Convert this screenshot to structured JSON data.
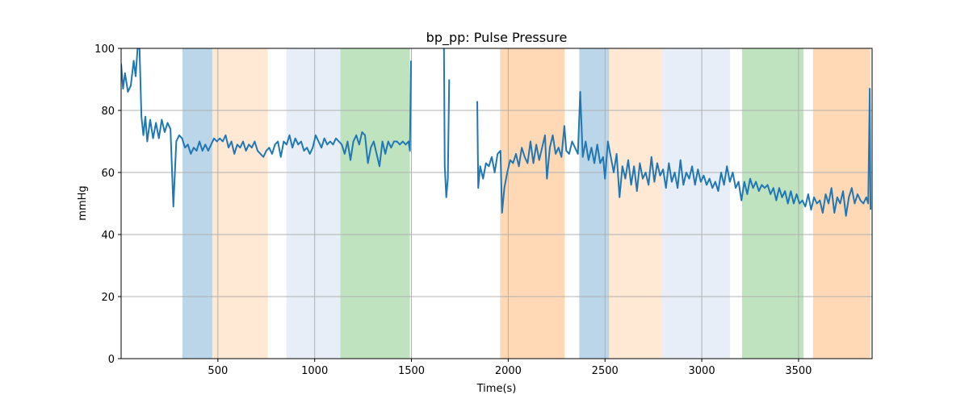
{
  "chart_data": {
    "type": "line",
    "title": "bp_pp: Pulse Pressure",
    "xlabel": "Time(s)",
    "ylabel": "mmHg",
    "xlim": [
      0,
      3880
    ],
    "ylim": [
      0,
      100
    ],
    "grid": true,
    "xticks": [
      500,
      1000,
      1500,
      2000,
      2500,
      3000,
      3500
    ],
    "yticks": [
      0,
      20,
      40,
      60,
      80,
      100
    ],
    "line_color": "#1f77b4",
    "spans": [
      {
        "start": 317,
        "end": 471,
        "color": "#1f77b4",
        "alpha": 0.3
      },
      {
        "start": 471,
        "end": 758,
        "color": "#ff7f0e",
        "alpha": 0.18
      },
      {
        "start": 854,
        "end": 1133,
        "color": "#aec7e8",
        "alpha": 0.3
      },
      {
        "start": 1133,
        "end": 1492,
        "color": "#2ca02c",
        "alpha": 0.3
      },
      {
        "start": 1958,
        "end": 2292,
        "color": "#ff7f0e",
        "alpha": 0.3
      },
      {
        "start": 2367,
        "end": 2521,
        "color": "#1f77b4",
        "alpha": 0.3
      },
      {
        "start": 2521,
        "end": 2796,
        "color": "#ff7f0e",
        "alpha": 0.18
      },
      {
        "start": 2796,
        "end": 3146,
        "color": "#aec7e8",
        "alpha": 0.3
      },
      {
        "start": 3208,
        "end": 3525,
        "color": "#2ca02c",
        "alpha": 0.3
      },
      {
        "start": 3575,
        "end": 3871,
        "color": "#ff7f0e",
        "alpha": 0.3
      }
    ],
    "segments": [
      [
        [
          0,
          95
        ],
        [
          10,
          87
        ],
        [
          20,
          92
        ],
        [
          35,
          86
        ],
        [
          50,
          88
        ],
        [
          65,
          96
        ],
        [
          75,
          91
        ],
        [
          85,
          100
        ],
        [
          95,
          100
        ],
        [
          105,
          78
        ],
        [
          115,
          72
        ],
        [
          125,
          78
        ],
        [
          135,
          70
        ],
        [
          150,
          77
        ],
        [
          165,
          71
        ],
        [
          180,
          76
        ],
        [
          195,
          71
        ],
        [
          210,
          77
        ],
        [
          225,
          73
        ],
        [
          240,
          76
        ],
        [
          255,
          74
        ],
        [
          270,
          49
        ],
        [
          285,
          70
        ],
        [
          300,
          72
        ],
        [
          315,
          71
        ],
        [
          330,
          68
        ],
        [
          345,
          69
        ],
        [
          360,
          66
        ],
        [
          375,
          68
        ],
        [
          390,
          67
        ],
        [
          405,
          70
        ],
        [
          420,
          67
        ],
        [
          435,
          69
        ],
        [
          450,
          67
        ],
        [
          465,
          69
        ],
        [
          480,
          71
        ],
        [
          495,
          70
        ],
        [
          510,
          71
        ],
        [
          525,
          70
        ],
        [
          540,
          72
        ],
        [
          555,
          68
        ],
        [
          570,
          70
        ],
        [
          585,
          66
        ],
        [
          600,
          69
        ],
        [
          615,
          68
        ],
        [
          630,
          70
        ],
        [
          645,
          67
        ],
        [
          660,
          69
        ],
        [
          675,
          68
        ],
        [
          690,
          70
        ],
        [
          705,
          67
        ],
        [
          720,
          66
        ],
        [
          735,
          65
        ],
        [
          750,
          67
        ],
        [
          765,
          68
        ],
        [
          780,
          66
        ],
        [
          795,
          69
        ],
        [
          810,
          70
        ],
        [
          825,
          65
        ],
        [
          840,
          70
        ],
        [
          855,
          69
        ],
        [
          870,
          72
        ],
        [
          885,
          68
        ],
        [
          900,
          71
        ],
        [
          915,
          69
        ],
        [
          930,
          70
        ],
        [
          945,
          67
        ],
        [
          960,
          68
        ],
        [
          975,
          66
        ],
        [
          990,
          68
        ],
        [
          1005,
          72
        ],
        [
          1020,
          70
        ],
        [
          1035,
          68
        ],
        [
          1050,
          71
        ],
        [
          1065,
          69
        ],
        [
          1080,
          70
        ],
        [
          1095,
          69
        ],
        [
          1110,
          71
        ],
        [
          1125,
          70
        ],
        [
          1140,
          69
        ],
        [
          1155,
          66
        ],
        [
          1170,
          70
        ],
        [
          1185,
          64
        ],
        [
          1200,
          70
        ],
        [
          1215,
          72
        ],
        [
          1230,
          69
        ],
        [
          1245,
          73
        ],
        [
          1260,
          72
        ],
        [
          1275,
          63
        ],
        [
          1290,
          68
        ],
        [
          1305,
          70
        ],
        [
          1320,
          66
        ],
        [
          1335,
          62
        ],
        [
          1350,
          70
        ],
        [
          1365,
          66
        ],
        [
          1380,
          70
        ],
        [
          1395,
          68
        ],
        [
          1410,
          70
        ],
        [
          1425,
          70
        ],
        [
          1440,
          69
        ],
        [
          1455,
          70
        ],
        [
          1470,
          69
        ],
        [
          1485,
          70
        ],
        [
          1492,
          67
        ],
        [
          1498,
          96
        ]
      ],
      [
        [
          1668,
          100
        ],
        [
          1672,
          62
        ],
        [
          1680,
          52
        ],
        [
          1688,
          58
        ],
        [
          1695,
          90
        ]
      ],
      [
        [
          1840,
          83
        ],
        [
          1845,
          55
        ],
        [
          1855,
          62
        ],
        [
          1870,
          58
        ],
        [
          1885,
          63
        ],
        [
          1900,
          62
        ],
        [
          1915,
          65
        ],
        [
          1930,
          60
        ],
        [
          1945,
          66
        ],
        [
          1960,
          67
        ],
        [
          1968,
          47
        ],
        [
          1980,
          55
        ],
        [
          1995,
          60
        ],
        [
          2010,
          64
        ],
        [
          2025,
          63
        ],
        [
          2040,
          66
        ],
        [
          2055,
          62
        ],
        [
          2070,
          68
        ],
        [
          2085,
          65
        ],
        [
          2100,
          63
        ],
        [
          2115,
          70
        ],
        [
          2130,
          63
        ],
        [
          2145,
          69
        ],
        [
          2160,
          64
        ],
        [
          2175,
          68
        ],
        [
          2190,
          72
        ],
        [
          2200,
          58
        ],
        [
          2215,
          68
        ],
        [
          2230,
          72
        ],
        [
          2245,
          66
        ],
        [
          2260,
          68
        ],
        [
          2275,
          65
        ],
        [
          2290,
          75
        ],
        [
          2300,
          67
        ],
        [
          2315,
          66
        ],
        [
          2330,
          70
        ],
        [
          2345,
          68
        ],
        [
          2360,
          66
        ],
        [
          2372,
          86
        ],
        [
          2385,
          65
        ],
        [
          2400,
          70
        ],
        [
          2415,
          64
        ],
        [
          2430,
          68
        ],
        [
          2445,
          63
        ],
        [
          2460,
          69
        ],
        [
          2475,
          63
        ],
        [
          2490,
          65
        ],
        [
          2500,
          58
        ],
        [
          2515,
          70
        ],
        [
          2530,
          65
        ],
        [
          2545,
          60
        ],
        [
          2560,
          66
        ],
        [
          2575,
          52
        ],
        [
          2590,
          62
        ],
        [
          2605,
          58
        ],
        [
          2620,
          64
        ],
        [
          2635,
          56
        ],
        [
          2650,
          62
        ],
        [
          2665,
          54
        ],
        [
          2680,
          63
        ],
        [
          2695,
          58
        ],
        [
          2710,
          60
        ],
        [
          2725,
          56
        ],
        [
          2740,
          65
        ],
        [
          2755,
          57
        ],
        [
          2770,
          63
        ],
        [
          2785,
          59
        ],
        [
          2800,
          61
        ],
        [
          2815,
          55
        ],
        [
          2830,
          63
        ],
        [
          2845,
          57
        ],
        [
          2860,
          60
        ],
        [
          2875,
          55
        ],
        [
          2890,
          64
        ],
        [
          2905,
          56
        ],
        [
          2920,
          60
        ],
        [
          2935,
          58
        ],
        [
          2950,
          62
        ],
        [
          2965,
          56
        ],
        [
          2980,
          61
        ],
        [
          2995,
          57
        ],
        [
          3010,
          59
        ],
        [
          3025,
          56
        ],
        [
          3040,
          58
        ],
        [
          3055,
          55
        ],
        [
          3070,
          57
        ],
        [
          3085,
          54
        ],
        [
          3100,
          60
        ],
        [
          3115,
          56
        ],
        [
          3130,
          62
        ],
        [
          3145,
          57
        ],
        [
          3160,
          60
        ],
        [
          3175,
          55
        ],
        [
          3190,
          57
        ],
        [
          3205,
          51
        ],
        [
          3220,
          57
        ],
        [
          3235,
          53
        ],
        [
          3250,
          58
        ],
        [
          3265,
          55
        ],
        [
          3280,
          57
        ],
        [
          3295,
          54
        ],
        [
          3310,
          56
        ],
        [
          3325,
          55
        ],
        [
          3340,
          56
        ],
        [
          3355,
          53
        ],
        [
          3370,
          55
        ],
        [
          3385,
          51
        ],
        [
          3400,
          55
        ],
        [
          3415,
          52
        ],
        [
          3430,
          54
        ],
        [
          3445,
          50
        ],
        [
          3460,
          54
        ],
        [
          3475,
          50
        ],
        [
          3490,
          53
        ],
        [
          3505,
          50
        ],
        [
          3520,
          51
        ],
        [
          3535,
          49
        ],
        [
          3550,
          53
        ],
        [
          3565,
          48
        ],
        [
          3580,
          52
        ],
        [
          3595,
          50
        ],
        [
          3610,
          51
        ],
        [
          3625,
          47
        ],
        [
          3640,
          53
        ],
        [
          3655,
          50
        ],
        [
          3670,
          55
        ],
        [
          3685,
          47
        ],
        [
          3700,
          52
        ],
        [
          3715,
          50
        ],
        [
          3730,
          54
        ],
        [
          3745,
          46
        ],
        [
          3760,
          52
        ],
        [
          3775,
          55
        ],
        [
          3790,
          50
        ],
        [
          3805,
          53
        ],
        [
          3820,
          51
        ],
        [
          3835,
          50
        ],
        [
          3850,
          52
        ],
        [
          3860,
          50
        ],
        [
          3868,
          87
        ],
        [
          3872,
          48
        ]
      ]
    ]
  }
}
